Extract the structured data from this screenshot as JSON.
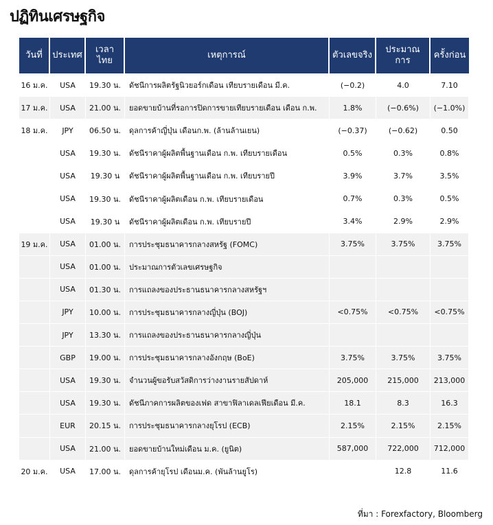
{
  "header": {
    "title": "ปฏิทินเศรษฐกิจ"
  },
  "table": {
    "columns": [
      "วันที่",
      "ประเทศ",
      "เวลาไทย",
      "เหตุการณ์",
      "ตัวเลขจริง",
      "ประมาณการ",
      "ครั้งก่อน"
    ],
    "rows": [
      {
        "date": "16 ม.ค.",
        "country": "USA",
        "time": "19.30 น.",
        "event": "ดัชนีการผลิตรัฐนิวยอร์กเดือน เทียบรายเดือน มี.ค.",
        "actual": "(−0.2)",
        "forecast": "4.0",
        "previous": "7.10"
      },
      {
        "date": "17 ม.ค.",
        "country": "USA",
        "time": "21.00 น.",
        "event": "ยอดขายบ้านที่รอการปิดการขายเทียบรายเดือน เดือน ก.พ.",
        "actual": "1.8%",
        "forecast": "(−0.6%)",
        "previous": "(−1.0%)"
      },
      {
        "date": "18 ม.ค.",
        "country": "JPY",
        "time": "06.50 น.",
        "event": "ดุลการค้าญี่ปุ่น เดือนก.พ. (ล้านล้านเยน)",
        "actual": "(−0.37)",
        "forecast": "(−0.62)",
        "previous": "0.50"
      },
      {
        "country": "USA",
        "time": "19.30 น.",
        "event": "ดัชนีราคาผู้ผลิตพื้นฐานเดือน ก.พ. เทียบรายเดือน",
        "actual": "0.5%",
        "forecast": "0.3%",
        "previous": "0.8%"
      },
      {
        "country": "USA",
        "time": "19.30 น",
        "event": "ดัชนีราคาผู้ผลิตพื้นฐานเดือน ก.พ. เทียบรายปี",
        "actual": "3.9%",
        "forecast": "3.7%",
        "previous": "3.5%"
      },
      {
        "country": "USA",
        "time": "19.30 น.",
        "event": "ดัชนีราคาผู้ผลิตเดือน ก.พ. เทียบรายเดือน",
        "actual": "0.7%",
        "forecast": "0.3%",
        "previous": "0.5%"
      },
      {
        "country": "USA",
        "time": "19.30 น",
        "event": "ดัชนีราคาผู้ผลิตเดือน ก.พ. เทียบรายปี",
        "actual": "3.4%",
        "forecast": "2.9%",
        "previous": "2.9%"
      },
      {
        "date": "19 ม.ค.",
        "country": "USA",
        "time": "01.00 น.",
        "event": "การประชุมธนาคารกลางสหรัฐ (FOMC)",
        "actual": "3.75%",
        "forecast": "3.75%",
        "previous": "3.75%"
      },
      {
        "country": "USA",
        "time": "01.00 น.",
        "event": "ประมาณการตัวเลขเศรษฐกิจ"
      },
      {
        "country": "USA",
        "time": "01.30 น.",
        "event": "การแถลงของประธานธนาคารกลางสหรัฐฯ"
      },
      {
        "country": "JPY",
        "time": "10.00 น.",
        "event": "การประชุมธนาคารกลางญี่ปุ่น (BOJ)",
        "actual": "<0.75%",
        "forecast": "<0.75%",
        "previous": "<0.75%"
      },
      {
        "country": "JPY",
        "time": "13.30 น.",
        "event": "การแถลงของประธานธนาคารกลางญี่ปุ่น"
      },
      {
        "country": "GBP",
        "time": "19.00 น.",
        "event": "การประชุมธนาคารกลางอังกฤษ (BoE)",
        "actual": "3.75%",
        "forecast": "3.75%",
        "previous": "3.75%"
      },
      {
        "country": "USA",
        "time": "19.30 น.",
        "event": "จำนวนผู้ขอรับสวัสดิการว่างงานรายสัปดาห์",
        "actual": "205,000",
        "forecast": "215,000",
        "previous": "213,000"
      },
      {
        "country": "USA",
        "time": "19.30 น.",
        "event": "ดัชนีภาคการผลิตของเฟด สาขาฟิลาเดลเฟียเดือน มี.ค.",
        "actual": "18.1",
        "forecast": "8.3",
        "previous": "16.3"
      },
      {
        "country": "EUR",
        "time": "20.15 น.",
        "event": "การประชุมธนาคารกลางยุโรป (ECB)",
        "actual": "2.15%",
        "forecast": "2.15%",
        "previous": "2.15%"
      },
      {
        "country": "USA",
        "time": "21.00 น.",
        "event": "ยอดขายบ้านใหม่เดือน ม.ค. (ยูนิต)",
        "actual": "587,000",
        "forecast": "722,000",
        "previous": "712,000"
      },
      {
        "date": "20 ม.ค.",
        "country": "USA",
        "time": "17.00 น.",
        "event": "ดุลการค้ายุโรป เดือนม.ค. (พันล้านยูโร)",
        "forecast": "12.8",
        "previous": "11.6"
      }
    ]
  },
  "footer": {
    "source": "ที่มา : Forexfactory, Bloomberg"
  }
}
